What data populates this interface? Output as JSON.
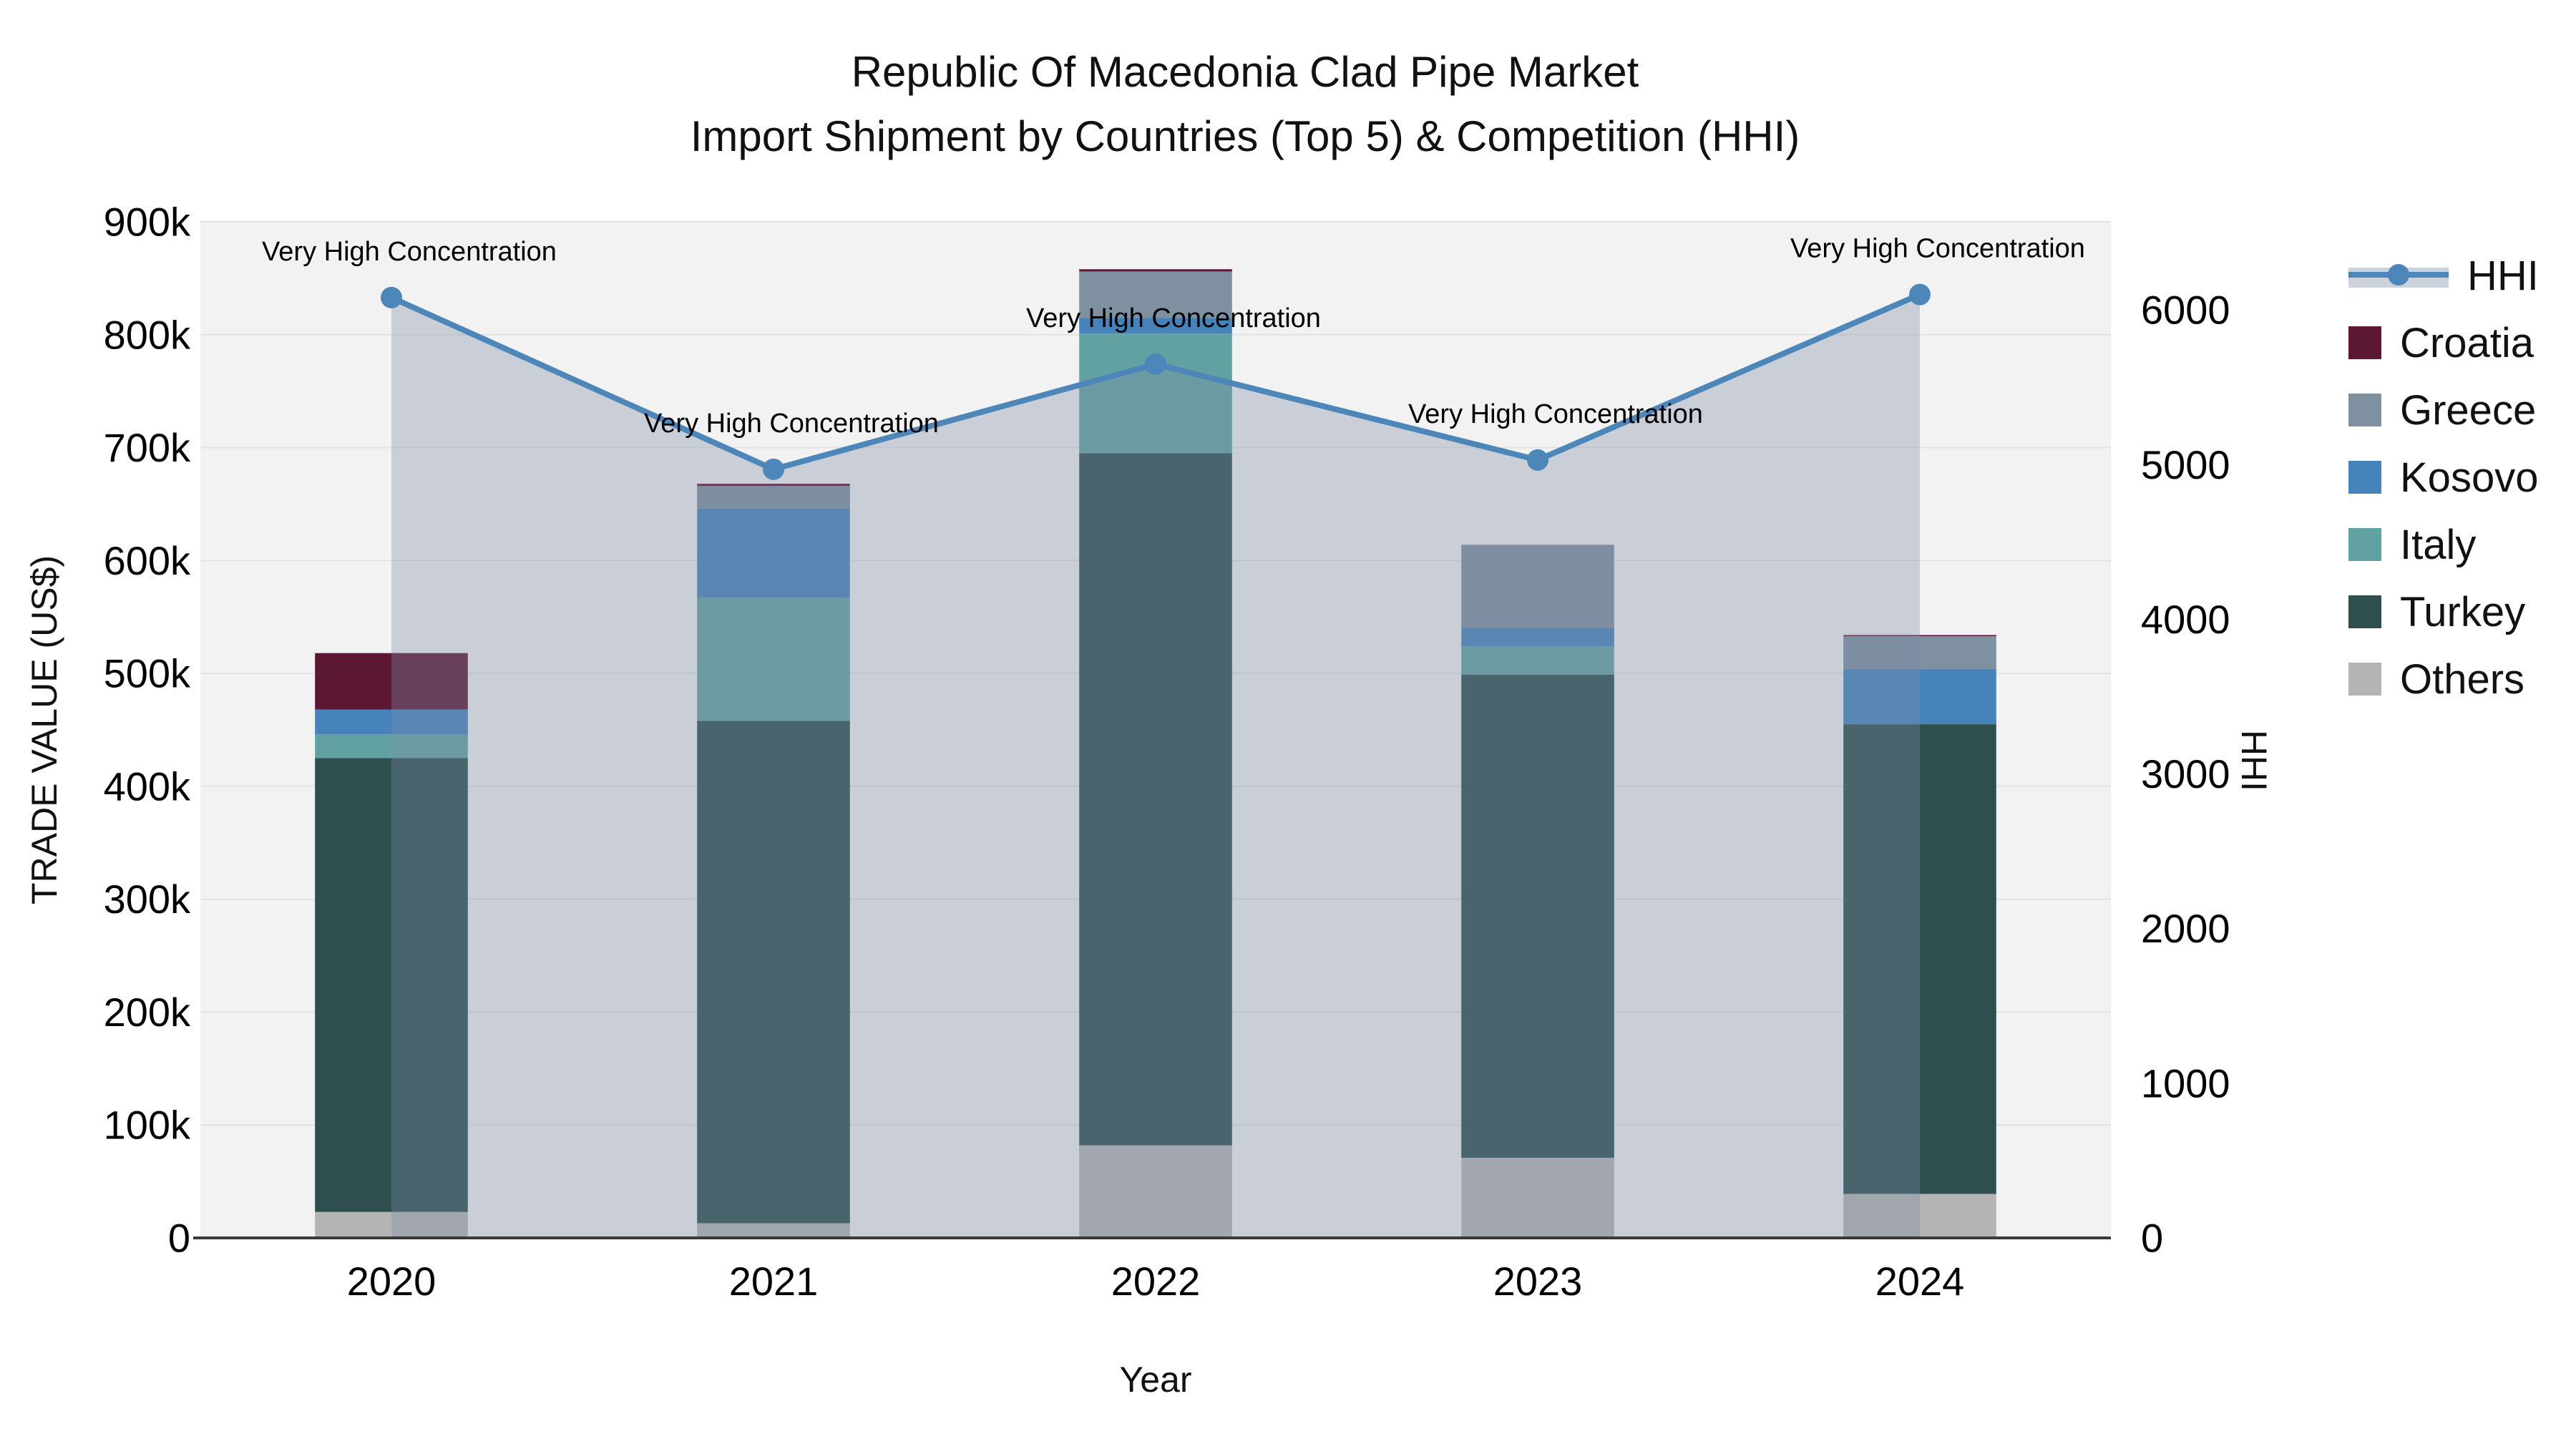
{
  "title": {
    "line1": "Republic Of Macedonia Clad Pipe Market",
    "line2": "Import Shipment by Countries (Top 5) & Competition (HHI)"
  },
  "axes": {
    "left_title": "TRADE VALUE (US$)",
    "right_title": "HHI",
    "x_title": "Year",
    "left_ticks": [
      "0",
      "100k",
      "200k",
      "300k",
      "400k",
      "500k",
      "600k",
      "700k",
      "800k",
      "900k"
    ],
    "right_ticks": [
      "0",
      "1000",
      "2000",
      "3000",
      "4000",
      "5000",
      "6000"
    ]
  },
  "legend": [
    {
      "label": "HHI",
      "type": "line",
      "color": "#4d86b8"
    },
    {
      "label": "Croatia",
      "type": "swatch",
      "color": "#5b1733"
    },
    {
      "label": "Greece",
      "type": "swatch",
      "color": "#7f90a0"
    },
    {
      "label": "Kosovo",
      "type": "swatch",
      "color": "#4583ba"
    },
    {
      "label": "Italy",
      "type": "swatch",
      "color": "#61a1a1"
    },
    {
      "label": "Turkey",
      "type": "swatch",
      "color": "#2f4f4f"
    },
    {
      "label": "Others",
      "type": "swatch",
      "color": "#b4b4b4"
    }
  ],
  "chart_data": {
    "type": "combo",
    "subtype": "stacked-bar-plus-line",
    "title": "Republic Of Macedonia Clad Pipe Market",
    "subtitle": "Import Shipment by Countries (Top 5) & Competition (HHI)",
    "xlabel": "Year",
    "ylabel_left": "TRADE VALUE (US$)",
    "ylabel_right": "HHI",
    "categories": [
      "2020",
      "2021",
      "2022",
      "2023",
      "2024"
    ],
    "bar_stack_order_bottom_to_top": [
      "Others",
      "Turkey",
      "Italy",
      "Kosovo",
      "Greece",
      "Croatia"
    ],
    "bar_series": [
      {
        "name": "Others",
        "color": "#b4b4b4",
        "values": [
          23000,
          13000,
          82000,
          71000,
          39000
        ]
      },
      {
        "name": "Turkey",
        "color": "#2f4f4f",
        "values": [
          402000,
          445000,
          613000,
          428000,
          416000
        ]
      },
      {
        "name": "Italy",
        "color": "#61a1a1",
        "values": [
          21000,
          109000,
          106000,
          25000,
          0
        ]
      },
      {
        "name": "Kosovo",
        "color": "#4583ba",
        "values": [
          22000,
          79000,
          14000,
          16000,
          49000
        ]
      },
      {
        "name": "Greece",
        "color": "#7f90a0",
        "values": [
          0,
          20000,
          41000,
          74000,
          29000
        ]
      },
      {
        "name": "Croatia",
        "color": "#5b1733",
        "values": [
          50000,
          2000,
          2000,
          0,
          1000
        ]
      }
    ],
    "bar_totals": [
      518000,
      668000,
      858000,
      614000,
      534000
    ],
    "line_series": {
      "name": "HHI",
      "color": "#4d86b8",
      "fill_to_zero": true,
      "fill_color": "rgba(125,140,165,0.35)",
      "values": [
        6080,
        4970,
        5650,
        5030,
        6100
      ],
      "point_annotations": [
        "Very High Concentration",
        "Very High Concentration",
        "Very High Concentration",
        "Very High Concentration",
        "Very High Concentration"
      ]
    },
    "ylim_left": [
      0,
      900000
    ],
    "ylim_right": [
      0,
      6570
    ],
    "left_tick_step": 100000,
    "right_tick_step": 1000,
    "grid": true,
    "legend_position": "right"
  },
  "colors": {
    "plot_bg": "#f2f2f2",
    "page_bg": "#ffffff",
    "gridline": "#e2e2e2",
    "axis_line": "#3a3a3a",
    "annotation": "#000000",
    "tick_label": "#000000"
  }
}
